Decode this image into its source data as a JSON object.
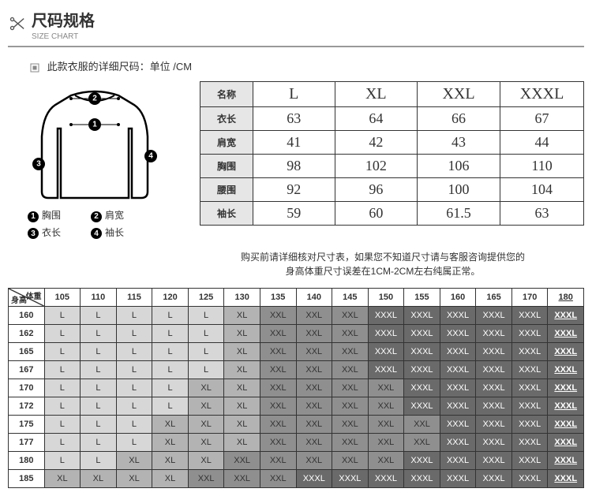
{
  "header": {
    "title_cn": "尺码规格",
    "title_en": "SIZE CHART"
  },
  "caption": "此款衣服的详细尺码：单位 /CM",
  "diagram_legend": [
    {
      "num": "1",
      "label": "胸围"
    },
    {
      "num": "2",
      "label": "肩宽"
    },
    {
      "num": "3",
      "label": "衣长"
    },
    {
      "num": "4",
      "label": "袖长"
    }
  ],
  "size_table": {
    "header_label": "名称",
    "size_cols": [
      "L",
      "XL",
      "XXL",
      "XXXL"
    ],
    "rows": [
      {
        "label": "衣长",
        "vals": [
          "63",
          "64",
          "66",
          "67"
        ]
      },
      {
        "label": "肩宽",
        "vals": [
          "41",
          "42",
          "43",
          "44"
        ]
      },
      {
        "label": "胸围",
        "vals": [
          "98",
          "102",
          "106",
          "110"
        ]
      },
      {
        "label": "腰围",
        "vals": [
          "92",
          "96",
          "100",
          "104"
        ]
      },
      {
        "label": "袖长",
        "vals": [
          "59",
          "60",
          "61.5",
          "63"
        ]
      }
    ]
  },
  "note_line1": "购买前请详细核对尺寸表，如果您不知道尺寸请与客服咨询提供您的",
  "note_line2": "身高体重尺寸误差在1CM-2CM左右纯属正常。",
  "hw_table": {
    "corner_weight": "体重",
    "corner_height": "身高",
    "weights": [
      "105",
      "110",
      "115",
      "120",
      "125",
      "130",
      "135",
      "140",
      "145",
      "150",
      "155",
      "160",
      "165",
      "170",
      "180"
    ],
    "heights": [
      "160",
      "162",
      "165",
      "167",
      "170",
      "172",
      "175",
      "177",
      "180",
      "185"
    ],
    "grid": [
      [
        "L",
        "L",
        "L",
        "L",
        "L",
        "XL",
        "XXL",
        "XXL",
        "XXL",
        "XXXL",
        "XXXL",
        "XXXL",
        "XXXL",
        "XXXL",
        "XXXL"
      ],
      [
        "L",
        "L",
        "L",
        "L",
        "L",
        "XL",
        "XXL",
        "XXL",
        "XXL",
        "XXXL",
        "XXXL",
        "XXXL",
        "XXXL",
        "XXXL",
        "XXXL"
      ],
      [
        "L",
        "L",
        "L",
        "L",
        "L",
        "XL",
        "XXL",
        "XXL",
        "XXL",
        "XXXL",
        "XXXL",
        "XXXL",
        "XXXL",
        "XXXL",
        "XXXL"
      ],
      [
        "L",
        "L",
        "L",
        "L",
        "L",
        "XL",
        "XXL",
        "XXL",
        "XXL",
        "XXXL",
        "XXXL",
        "XXXL",
        "XXXL",
        "XXXL",
        "XXXL"
      ],
      [
        "L",
        "L",
        "L",
        "L",
        "XL",
        "XL",
        "XXL",
        "XXL",
        "XXL",
        "XXL",
        "XXXL",
        "XXXL",
        "XXXL",
        "XXXL",
        "XXXL"
      ],
      [
        "L",
        "L",
        "L",
        "L",
        "XL",
        "XL",
        "XXL",
        "XXL",
        "XXL",
        "XXL",
        "XXXL",
        "XXXL",
        "XXXL",
        "XXXL",
        "XXXL"
      ],
      [
        "L",
        "L",
        "L",
        "XL",
        "XL",
        "XL",
        "XXL",
        "XXL",
        "XXL",
        "XXL",
        "XXL",
        "XXXL",
        "XXXL",
        "XXXL",
        "XXXL"
      ],
      [
        "L",
        "L",
        "L",
        "XL",
        "XL",
        "XL",
        "XXL",
        "XXL",
        "XXL",
        "XXL",
        "XXL",
        "XXXL",
        "XXXL",
        "XXXL",
        "XXXL"
      ],
      [
        "L",
        "L",
        "XL",
        "XL",
        "XL",
        "XXL",
        "XXL",
        "XXL",
        "XXL",
        "XXL",
        "XXXL",
        "XXXL",
        "XXXL",
        "XXXL",
        "XXXL"
      ],
      [
        "XL",
        "XL",
        "XL",
        "XL",
        "XXL",
        "XXL",
        "XXL",
        "XXXL",
        "XXXL",
        "XXXL",
        "XXXL",
        "XXXL",
        "XXXL",
        "XXXL",
        "XXXL"
      ]
    ]
  }
}
